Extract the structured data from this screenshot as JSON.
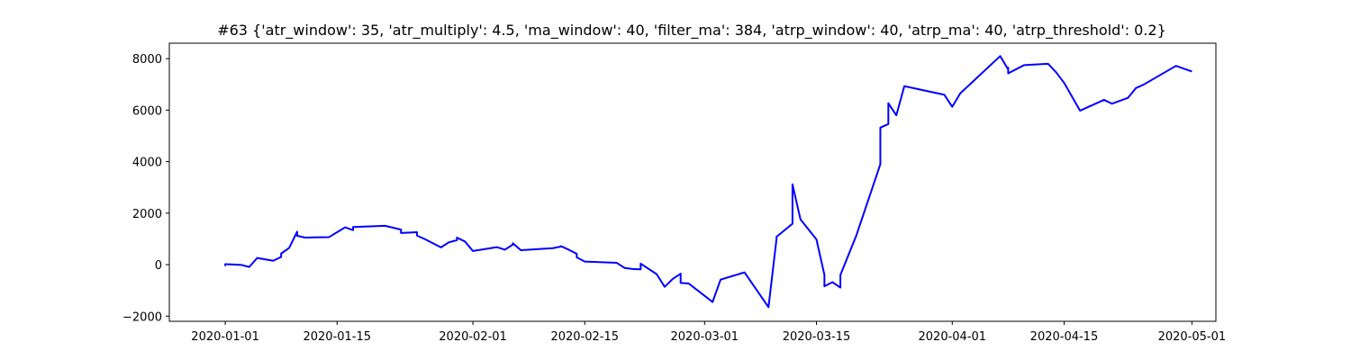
{
  "chart_data": {
    "type": "line",
    "title": "#63 {'atr_window': 35, 'atr_multiply': 4.5, 'ma_window': 40, 'filter_ma': 384, 'atrp_window': 40, 'atrp_ma': 40, 'atrp_threshold': 0.2}",
    "xlabel": "",
    "ylabel": "",
    "x_type": "date",
    "xlim": [
      "2019-12-25",
      "2020-05-04"
    ],
    "ylim": [
      -2200,
      8600
    ],
    "grid": false,
    "line_color": "#0000ff",
    "x_ticks": [
      "2020-01-01",
      "2020-01-15",
      "2020-02-01",
      "2020-02-15",
      "2020-03-01",
      "2020-03-15",
      "2020-04-01",
      "2020-04-15",
      "2020-05-01"
    ],
    "y_ticks": [
      -2000,
      0,
      2000,
      4000,
      6000,
      8000
    ],
    "series": [
      {
        "x": [
          "2020-01-01",
          "2020-01-01",
          "2020-01-01",
          "2020-01-03",
          "2020-01-04",
          "2020-01-05",
          "2020-01-07",
          "2020-01-08",
          "2020-01-08",
          "2020-01-08",
          "2020-01-09",
          "2020-01-10",
          "2020-01-10",
          "2020-01-11",
          "2020-01-12",
          "2020-01-14",
          "2020-01-16",
          "2020-01-17",
          "2020-01-17",
          "2020-01-21",
          "2020-01-23",
          "2020-01-23",
          "2020-01-25",
          "2020-01-25",
          "2020-01-26",
          "2020-01-28",
          "2020-01-29",
          "2020-01-30",
          "2020-01-30",
          "2020-01-31",
          "2020-02-01",
          "2020-02-04",
          "2020-02-05",
          "2020-02-06",
          "2020-02-06",
          "2020-02-07",
          "2020-02-11",
          "2020-02-12",
          "2020-02-12",
          "2020-02-13",
          "2020-02-14",
          "2020-02-14",
          "2020-02-15",
          "2020-02-19",
          "2020-02-20",
          "2020-02-21",
          "2020-02-22",
          "2020-02-22",
          "2020-02-24",
          "2020-02-25",
          "2020-02-26",
          "2020-02-27",
          "2020-02-27",
          "2020-02-28",
          "2020-03-02",
          "2020-03-03",
          "2020-03-06",
          "2020-03-09",
          "2020-03-10",
          "2020-03-10",
          "2020-03-12",
          "2020-03-12",
          "2020-03-13",
          "2020-03-15",
          "2020-03-16",
          "2020-03-16",
          "2020-03-17",
          "2020-03-18",
          "2020-03-18",
          "2020-03-20",
          "2020-03-23",
          "2020-03-23",
          "2020-03-24",
          "2020-03-24",
          "2020-03-25",
          "2020-03-26",
          "2020-03-31",
          "2020-04-01",
          "2020-04-02",
          "2020-04-07",
          "2020-04-08",
          "2020-04-08",
          "2020-04-08",
          "2020-04-10",
          "2020-04-13",
          "2020-04-14",
          "2020-04-15",
          "2020-04-17",
          "2020-04-20",
          "2020-04-21",
          "2020-04-23",
          "2020-04-24",
          "2020-04-25",
          "2020-04-29",
          "2020-05-01"
        ],
        "y": [
          0,
          -30,
          20,
          -10,
          -90,
          260,
          150,
          300,
          340,
          430,
          650,
          1280,
          1120,
          1050,
          1060,
          1070,
          1450,
          1340,
          1460,
          1510,
          1360,
          1230,
          1260,
          1130,
          990,
          670,
          870,
          950,
          1050,
          900,
          530,
          680,
          580,
          780,
          830,
          560,
          640,
          700,
          720,
          580,
          420,
          280,
          120,
          70,
          -130,
          -170,
          -180,
          40,
          -370,
          -860,
          -560,
          -350,
          -710,
          -730,
          -1450,
          -580,
          -300,
          -1650,
          990,
          1080,
          1590,
          3120,
          1760,
          980,
          -400,
          -840,
          -680,
          -890,
          -400,
          1140,
          3900,
          5320,
          5460,
          6270,
          5800,
          6930,
          6600,
          6130,
          6650,
          8100,
          7580,
          7650,
          7430,
          7750,
          7800,
          7470,
          7060,
          5980,
          6400,
          6250,
          6480,
          6860,
          7000,
          7720,
          7500
        ]
      }
    ]
  }
}
